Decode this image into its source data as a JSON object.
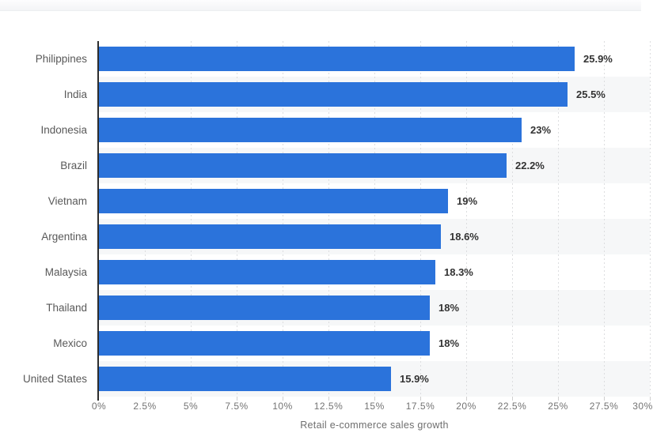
{
  "chart_data": {
    "type": "bar",
    "orientation": "horizontal",
    "title": "",
    "categories": [
      "Philippines",
      "India",
      "Indonesia",
      "Brazil",
      "Vietnam",
      "Argentina",
      "Malaysia",
      "Thailand",
      "Mexico",
      "United States"
    ],
    "values": [
      25.9,
      25.5,
      23,
      22.2,
      19,
      18.6,
      18.3,
      18,
      18,
      15.9
    ],
    "value_labels": [
      "25.9%",
      "25.5%",
      "23%",
      "22.2%",
      "19%",
      "18.6%",
      "18.3%",
      "18%",
      "18%",
      "15.9%"
    ],
    "xlabel": "Retail e-commerce sales growth",
    "ylabel": "",
    "x_tick_labels": [
      "0%",
      "2.5%",
      "5%",
      "7.5%",
      "10%",
      "12.5%",
      "15%",
      "17.5%",
      "20%",
      "22.5%",
      "25%",
      "27.5%",
      "30%"
    ],
    "xlim": [
      0,
      30
    ],
    "grid": "vertical-dotted",
    "legend": "none",
    "colors": {
      "bar": "#2b73db",
      "row_band": "#f6f7f8",
      "axis": "#2d2d2d",
      "gridline": "#dcdddf",
      "value_label": "#333333",
      "category_label": "#595959",
      "tick_label": "#737373"
    }
  }
}
